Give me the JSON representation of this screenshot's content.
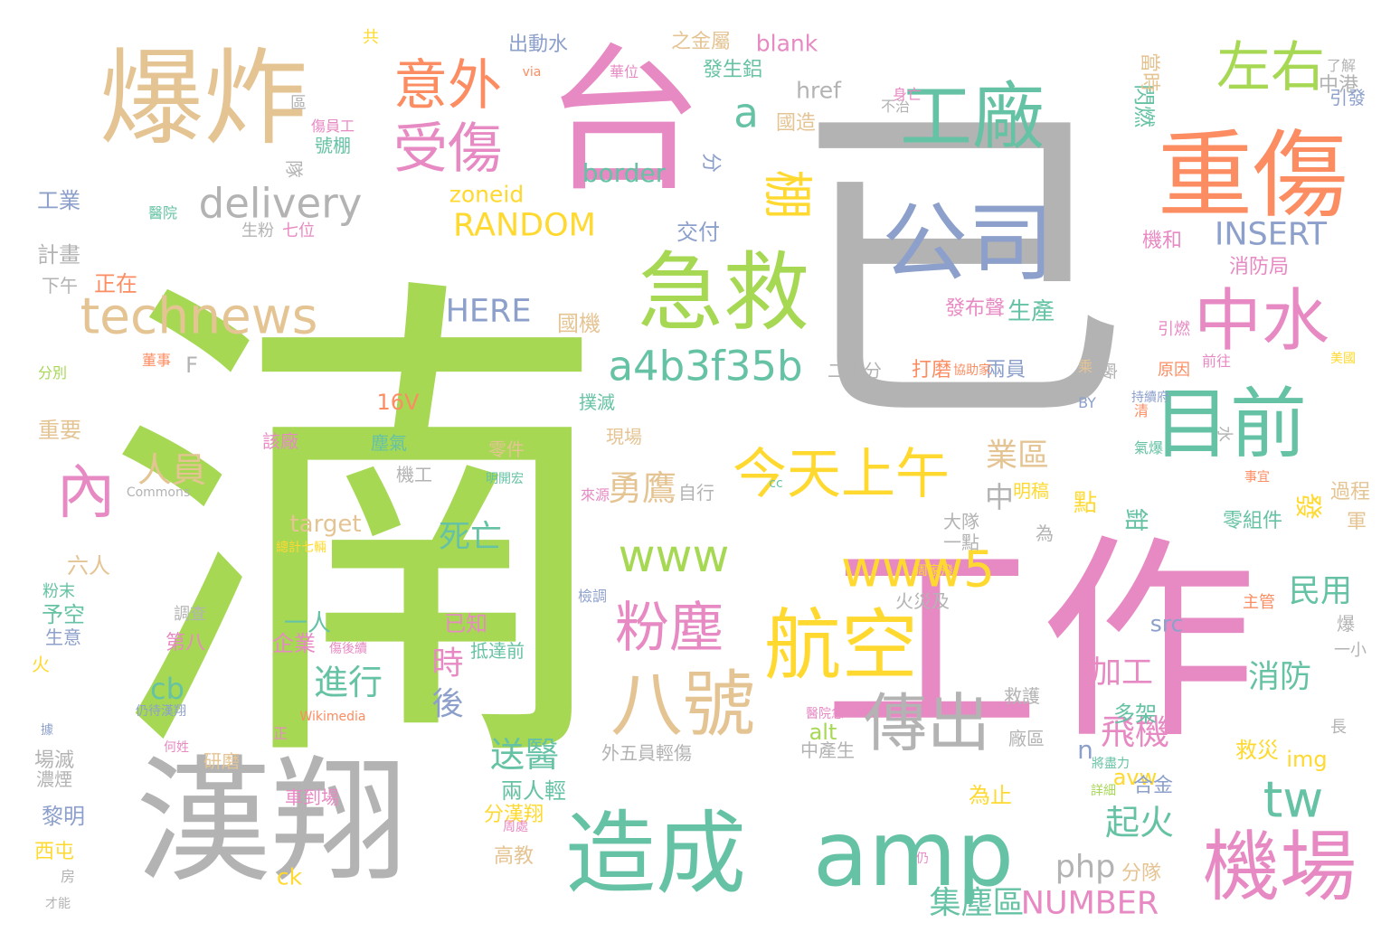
{
  "colors": {
    "green": "#a6d854",
    "gray": "#b3b3b3",
    "pink": "#e78ac3",
    "orange": "#fc8d62",
    "tan": "#e5c494",
    "teal": "#66c2a5",
    "blue": "#8da0cb",
    "yellow": "#ffd92f"
  },
  "words": [
    {
      "text": "湳",
      "color": "green"
    },
    {
      "text": "工作",
      "color": "pink"
    },
    {
      "text": "已",
      "color": "gray"
    },
    {
      "text": "漢翔",
      "color": "gray"
    },
    {
      "text": "台",
      "color": "pink"
    },
    {
      "text": "爆炸",
      "color": "tan"
    },
    {
      "text": "重傷",
      "color": "orange"
    },
    {
      "text": "造成",
      "color": "teal"
    },
    {
      "text": "amp",
      "color": "teal"
    },
    {
      "text": "公司",
      "color": "blue"
    },
    {
      "text": "急救",
      "color": "green"
    },
    {
      "text": "工廠",
      "color": "teal"
    },
    {
      "text": "目前",
      "color": "teal"
    },
    {
      "text": "航空",
      "color": "yellow"
    },
    {
      "text": "機場",
      "color": "pink"
    },
    {
      "text": "八號",
      "color": "tan"
    },
    {
      "text": "中水",
      "color": "pink"
    },
    {
      "text": "傳出",
      "color": "gray"
    },
    {
      "text": "左右",
      "color": "green"
    },
    {
      "text": "意外",
      "color": "orange"
    },
    {
      "text": "受傷",
      "color": "pink"
    },
    {
      "text": "今天上午",
      "color": "yellow"
    },
    {
      "text": "粉塵",
      "color": "pink"
    },
    {
      "text": "technews",
      "color": "tan"
    },
    {
      "text": "www5",
      "color": "yellow"
    },
    {
      "text": "www",
      "color": "green"
    },
    {
      "text": "棚",
      "color": "yellow"
    },
    {
      "text": "內",
      "color": "pink"
    },
    {
      "text": "a4b3f35b",
      "color": "teal"
    },
    {
      "text": "delivery",
      "color": "gray"
    },
    {
      "text": "tw",
      "color": "teal"
    },
    {
      "text": "a",
      "color": "teal"
    },
    {
      "text": "RANDOM",
      "color": "yellow"
    },
    {
      "text": "INSERT",
      "color": "blue"
    },
    {
      "text": "NUMBER",
      "color": "pink"
    },
    {
      "text": "HERE",
      "color": "blue"
    },
    {
      "text": "php",
      "color": "gray"
    },
    {
      "text": "集塵區",
      "color": "teal"
    },
    {
      "text": "勇鷹",
      "color": "tan"
    },
    {
      "text": "人員",
      "color": "tan"
    },
    {
      "text": "飛機",
      "color": "pink"
    },
    {
      "text": "送醫",
      "color": "teal"
    },
    {
      "text": "起火",
      "color": "teal"
    },
    {
      "text": "進行",
      "color": "teal"
    },
    {
      "text": "死亡",
      "color": "teal"
    },
    {
      "text": "業區",
      "color": "tan"
    },
    {
      "text": "民用",
      "color": "teal"
    },
    {
      "text": "消防",
      "color": "teal"
    },
    {
      "text": "加工",
      "color": "pink"
    },
    {
      "text": "時",
      "color": "pink"
    },
    {
      "text": "後",
      "color": "blue"
    },
    {
      "text": "cb",
      "color": "teal"
    },
    {
      "text": "border",
      "color": "teal"
    },
    {
      "text": "href",
      "color": "gray"
    },
    {
      "text": "blank",
      "color": "pink"
    },
    {
      "text": "zoneid",
      "color": "yellow"
    },
    {
      "text": "target",
      "color": "tan"
    },
    {
      "text": "src",
      "color": "blue"
    },
    {
      "text": "img",
      "color": "yellow"
    },
    {
      "text": "alt",
      "color": "green"
    },
    {
      "text": "avw",
      "color": "yellow"
    },
    {
      "text": "ck",
      "color": "yellow"
    },
    {
      "text": "n",
      "color": "blue"
    },
    {
      "text": "16V",
      "color": "orange"
    },
    {
      "text": "F",
      "color": "gray"
    },
    {
      "text": "中",
      "color": "gray"
    },
    {
      "text": "點",
      "color": "yellow"
    },
    {
      "text": "鉗",
      "color": "teal"
    },
    {
      "text": "發",
      "color": "yellow"
    },
    {
      "text": "生產",
      "color": "teal"
    },
    {
      "text": "國機",
      "color": "tan"
    },
    {
      "text": "交付",
      "color": "blue"
    },
    {
      "text": "分",
      "color": "blue"
    },
    {
      "text": "出動水",
      "color": "blue"
    },
    {
      "text": "之金屬",
      "color": "tan"
    },
    {
      "text": "發生鋁",
      "color": "teal"
    },
    {
      "text": "國造",
      "color": "tan"
    },
    {
      "text": "閃燃",
      "color": "teal"
    },
    {
      "text": "當時",
      "color": "tan"
    },
    {
      "text": "中港",
      "color": "gray"
    },
    {
      "text": "引發",
      "color": "blue"
    },
    {
      "text": "機和",
      "color": "pink"
    },
    {
      "text": "消防局",
      "color": "pink"
    },
    {
      "text": "發布聲",
      "color": "pink"
    },
    {
      "text": "打磨",
      "color": "orange"
    },
    {
      "text": "兩員",
      "color": "blue"
    },
    {
      "text": "二十分",
      "color": "gray"
    },
    {
      "text": "工業",
      "color": "blue"
    },
    {
      "text": "計畫",
      "color": "gray"
    },
    {
      "text": "正在",
      "color": "orange"
    },
    {
      "text": "下午",
      "color": "gray"
    },
    {
      "text": "重要",
      "color": "tan"
    },
    {
      "text": "六人",
      "color": "tan"
    },
    {
      "text": "予空",
      "color": "teal"
    },
    {
      "text": "生意",
      "color": "blue"
    },
    {
      "text": "一人",
      "color": "teal"
    },
    {
      "text": "企業",
      "color": "pink"
    },
    {
      "text": "已知",
      "color": "pink"
    },
    {
      "text": "第八",
      "color": "pink"
    },
    {
      "text": "多架",
      "color": "teal"
    },
    {
      "text": "救災",
      "color": "yellow"
    },
    {
      "text": "合金",
      "color": "blue"
    },
    {
      "text": "為止",
      "color": "yellow"
    },
    {
      "text": "兩人輕",
      "color": "teal"
    },
    {
      "text": "分漢翔",
      "color": "yellow"
    },
    {
      "text": "高教",
      "color": "tan"
    },
    {
      "text": "分隊",
      "color": "tan"
    },
    {
      "text": "黎明",
      "color": "blue"
    },
    {
      "text": "西屯",
      "color": "yellow"
    },
    {
      "text": "場滅",
      "color": "gray"
    },
    {
      "text": "明稿",
      "color": "yellow"
    },
    {
      "text": "零件",
      "color": "tan"
    },
    {
      "text": "機工",
      "color": "gray"
    },
    {
      "text": "廠",
      "color": "gray"
    },
    {
      "text": "過程",
      "color": "tan"
    },
    {
      "text": "軍",
      "color": "tan"
    },
    {
      "text": "零組件",
      "color": "teal"
    },
    {
      "text": "撲滅",
      "color": "teal"
    },
    {
      "text": "現場",
      "color": "tan"
    },
    {
      "text": "救護",
      "color": "gray"
    },
    {
      "text": "大隊",
      "color": "gray"
    },
    {
      "text": "一點",
      "color": "gray"
    },
    {
      "text": "廠區",
      "color": "gray"
    },
    {
      "text": "火災及",
      "color": "gray"
    },
    {
      "text": "自行",
      "color": "gray"
    },
    {
      "text": "該廠",
      "color": "pink"
    },
    {
      "text": "塵氣",
      "color": "teal"
    },
    {
      "text": "抵達前",
      "color": "teal"
    },
    {
      "text": "外五員輕傷",
      "color": "gray"
    },
    {
      "text": "中產生",
      "color": "gray"
    },
    {
      "text": "研磨",
      "color": "tan"
    },
    {
      "text": "濃煙",
      "color": "gray"
    },
    {
      "text": "車到場",
      "color": "pink"
    },
    {
      "text": "隊",
      "color": "gray"
    },
    {
      "text": "號棚",
      "color": "teal"
    },
    {
      "text": "區",
      "color": "gray"
    },
    {
      "text": "共",
      "color": "yellow"
    },
    {
      "text": "生粉",
      "color": "gray"
    },
    {
      "text": "七位",
      "color": "pink"
    },
    {
      "text": "醫院",
      "color": "teal"
    },
    {
      "text": "分別",
      "color": "green"
    },
    {
      "text": "董事",
      "color": "orange"
    },
    {
      "text": "火",
      "color": "yellow"
    },
    {
      "text": "調查",
      "color": "gray"
    },
    {
      "text": "粉末",
      "color": "teal"
    },
    {
      "text": "水",
      "color": "gray"
    },
    {
      "text": "為",
      "color": "gray"
    },
    {
      "text": "爆",
      "color": "gray"
    },
    {
      "text": "一小",
      "color": "gray"
    },
    {
      "text": "長",
      "color": "gray"
    },
    {
      "text": "主管",
      "color": "orange"
    },
    {
      "text": "原因",
      "color": "orange"
    },
    {
      "text": "前往",
      "color": "pink"
    },
    {
      "text": "引燃",
      "color": "pink"
    },
    {
      "text": "了解",
      "color": "gray"
    },
    {
      "text": "不治",
      "color": "gray"
    },
    {
      "text": "身亡",
      "color": "pink"
    },
    {
      "text": "華位",
      "color": "pink"
    },
    {
      "text": "via",
      "color": "orange"
    },
    {
      "text": "傷員工",
      "color": "pink"
    },
    {
      "text": "Commons",
      "color": "gray"
    },
    {
      "text": "Wikimedia",
      "color": "orange"
    },
    {
      "text": "cc",
      "color": "teal"
    },
    {
      "text": "BY",
      "color": "blue"
    },
    {
      "text": "清",
      "color": "orange"
    },
    {
      "text": "氣爆",
      "color": "teal"
    },
    {
      "text": "檢調",
      "color": "blue"
    },
    {
      "text": "來源",
      "color": "pink"
    },
    {
      "text": "總計七輛",
      "color": "yellow"
    },
    {
      "text": "明開宏",
      "color": "teal"
    },
    {
      "text": "仍待漢翔",
      "color": "blue"
    },
    {
      "text": "醫院急",
      "color": "pink"
    },
    {
      "text": "周家飛",
      "color": "yellow"
    },
    {
      "text": "協助家",
      "color": "orange"
    },
    {
      "text": "乘",
      "color": "tan"
    },
    {
      "text": "持續府",
      "color": "blue"
    },
    {
      "text": "事宜",
      "color": "orange"
    },
    {
      "text": "美國",
      "color": "yellow"
    },
    {
      "text": "將盡力",
      "color": "teal"
    },
    {
      "text": "何姓",
      "color": "pink"
    },
    {
      "text": "詳細",
      "color": "green"
    },
    {
      "text": "周處",
      "color": "pink"
    },
    {
      "text": "正",
      "color": "pink"
    },
    {
      "text": "據",
      "color": "blue"
    },
    {
      "text": "仍",
      "color": "pink"
    },
    {
      "text": "房",
      "color": "gray"
    },
    {
      "text": "才能",
      "color": "gray"
    },
    {
      "text": "傷後續",
      "color": "pink"
    }
  ]
}
